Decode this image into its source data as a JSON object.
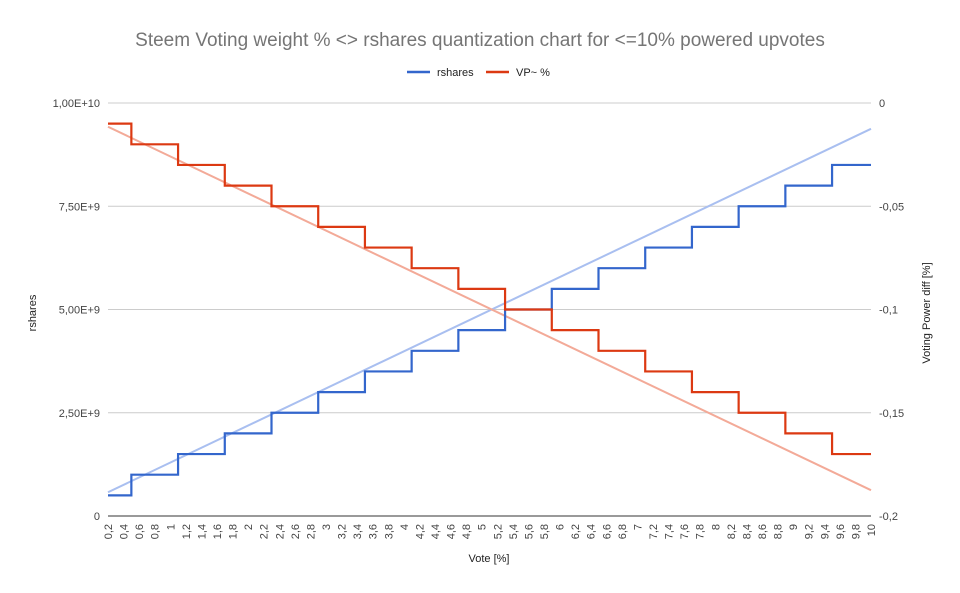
{
  "chart_data": {
    "type": "line",
    "title": "Steem Voting weight % <> rshares quantization chart for <=10% powered upvotes",
    "xlabel": "Vote [%]",
    "ylabel_left": "rshares",
    "ylabel_right": "Voting Power diff [%]",
    "left_ylim": [
      0,
      10000000000
    ],
    "right_ylim": [
      -0.2,
      0
    ],
    "left_ticks": [
      0,
      2500000000,
      5000000000,
      7500000000,
      10000000000
    ],
    "left_tick_labels": [
      "0",
      "2,50E+9",
      "5,00E+9",
      "7,50E+9",
      "1,00E+10"
    ],
    "right_ticks": [
      0,
      -0.05,
      -0.1,
      -0.15,
      -0.2
    ],
    "right_tick_labels": [
      "0",
      "-0,05",
      "-0,1",
      "-0,15",
      "-0,2"
    ],
    "x": [
      0.2,
      0.4,
      0.6,
      0.8,
      1,
      1.2,
      1.4,
      1.6,
      1.8,
      2,
      2.2,
      2.4,
      2.6,
      2.8,
      3,
      3.2,
      3.4,
      3.6,
      3.8,
      4,
      4.2,
      4.4,
      4.6,
      4.8,
      5,
      5.2,
      5.4,
      5.6,
      5.8,
      6,
      6.2,
      6.4,
      6.6,
      6.8,
      7,
      7.2,
      7.4,
      7.6,
      7.8,
      8,
      8.2,
      8.4,
      8.6,
      8.8,
      9,
      9.2,
      9.4,
      9.6,
      9.8,
      10
    ],
    "x_tick_labels": [
      "0,2",
      "0,4",
      "0,6",
      "0,8",
      "1",
      "1,2",
      "1,4",
      "1,6",
      "1,8",
      "2",
      "2,2",
      "2,4",
      "2,6",
      "2,8",
      "3",
      "3,2",
      "3,4",
      "3,6",
      "3,8",
      "4",
      "4,2",
      "4,4",
      "4,6",
      "4,8",
      "5",
      "5,2",
      "5,4",
      "5,6",
      "5,8",
      "6",
      "6,2",
      "6,4",
      "6,6",
      "6,8",
      "7",
      "7,2",
      "7,4",
      "7,6",
      "7,8",
      "8",
      "8,2",
      "8,4",
      "8,6",
      "8,8",
      "9",
      "9,2",
      "9,4",
      "9,6",
      "9,8",
      "10"
    ],
    "series": [
      {
        "name": "rshares",
        "axis": "left",
        "color": "#3366cc",
        "trendline_color": "#a9bff0",
        "values": [
          500000000,
          500000000,
          1000000000,
          1000000000,
          1000000000,
          1500000000,
          1500000000,
          1500000000,
          2000000000,
          2000000000,
          2000000000,
          2500000000,
          2500000000,
          2500000000,
          3000000000,
          3000000000,
          3000000000,
          3500000000,
          3500000000,
          3500000000,
          4000000000,
          4000000000,
          4000000000,
          4500000000,
          4500000000,
          4500000000,
          5000000000,
          5000000000,
          5000000000,
          5500000000,
          5500000000,
          5500000000,
          6000000000,
          6000000000,
          6000000000,
          6500000000,
          6500000000,
          6500000000,
          7000000000,
          7000000000,
          7000000000,
          7500000000,
          7500000000,
          7500000000,
          8000000000,
          8000000000,
          8000000000,
          8500000000,
          8500000000,
          8500000000
        ],
        "trendline": [
          575000000,
          9375000000
        ]
      },
      {
        "name": "VP~ %",
        "axis": "right",
        "color": "#dc3912",
        "trendline_color": "#f3aa98",
        "values": [
          -0.01,
          -0.01,
          -0.02,
          -0.02,
          -0.02,
          -0.03,
          -0.03,
          -0.03,
          -0.04,
          -0.04,
          -0.04,
          -0.05,
          -0.05,
          -0.05,
          -0.06,
          -0.06,
          -0.06,
          -0.07,
          -0.07,
          -0.07,
          -0.08,
          -0.08,
          -0.08,
          -0.09,
          -0.09,
          -0.09,
          -0.1,
          -0.1,
          -0.1,
          -0.11,
          -0.11,
          -0.11,
          -0.12,
          -0.12,
          -0.12,
          -0.13,
          -0.13,
          -0.13,
          -0.14,
          -0.14,
          -0.14,
          -0.15,
          -0.15,
          -0.15,
          -0.16,
          -0.16,
          -0.16,
          -0.17,
          -0.17,
          -0.17
        ],
        "trendline": [
          -0.0115,
          -0.1875
        ]
      }
    ],
    "legend_position": "top",
    "grid": true,
    "step": true
  }
}
